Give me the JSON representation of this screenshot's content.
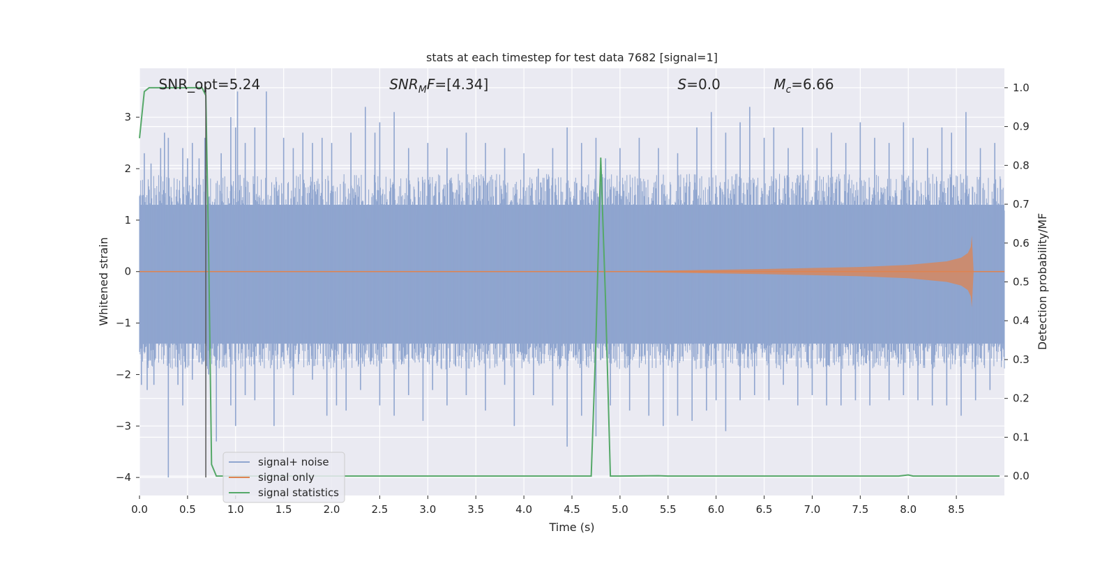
{
  "chart_data": {
    "type": "line",
    "title": "stats at each timestep for test data 7682 [signal=1]",
    "xlabel": "Time (s)",
    "ylabel_left": "Whitened strain",
    "ylabel_right": "Detection probability/MF",
    "xlim": [
      0.0,
      9.0
    ],
    "ylim_left": [
      -4.35,
      3.95
    ],
    "ylim_right": [
      -0.05,
      1.05
    ],
    "xticks": [
      0.0,
      0.5,
      1.0,
      1.5,
      2.0,
      2.5,
      3.0,
      3.5,
      4.0,
      4.5,
      5.0,
      5.5,
      6.0,
      6.5,
      7.0,
      7.5,
      8.0,
      8.5
    ],
    "xtick_labels": [
      "0.0",
      "0.5",
      "1.0",
      "1.5",
      "2.0",
      "2.5",
      "3.0",
      "3.5",
      "4.0",
      "4.5",
      "5.0",
      "5.5",
      "6.0",
      "6.5",
      "7.0",
      "7.5",
      "8.0",
      "8.5"
    ],
    "yticks_left": [
      3,
      2,
      1,
      0,
      -1,
      -2,
      -3,
      -4
    ],
    "ytick_labels_left": [
      "3",
      "2",
      "1",
      "0",
      "−1",
      "−2",
      "−3",
      "−4"
    ],
    "yticks_right": [
      1.0,
      0.9,
      0.8,
      0.7,
      0.6,
      0.5,
      0.4,
      0.3,
      0.2,
      0.1,
      0.0
    ],
    "ytick_labels_right": [
      "1.0",
      "0.9",
      "0.8",
      "0.7",
      "0.6",
      "0.5",
      "0.4",
      "0.3",
      "0.2",
      "0.1",
      "0.0"
    ],
    "grid": true,
    "legend_position": "lower-left",
    "annotations": [
      {
        "label": "SNR_opt=5.24",
        "math": false,
        "x": 0.2,
        "y": 3.6
      },
      {
        "base": "SNR",
        "sub": "M",
        "rest": "F=[4.34]",
        "math": true,
        "x": 2.6,
        "y": 3.6
      },
      {
        "base": "S",
        "sub": "",
        "rest": "=0.0",
        "math": true,
        "x": 5.6,
        "y": 3.6
      },
      {
        "base": "M",
        "sub": "c",
        "rest": "=6.66",
        "math": true,
        "x": 6.6,
        "y": 3.6
      }
    ],
    "vline": {
      "x": 0.69,
      "ymin": -4.0,
      "ymax": 3.6,
      "color": "#555555"
    },
    "series": [
      {
        "name": "signal+ noise",
        "color": "#8fa5cf",
        "axis": "left",
        "description_values": {
          "typical_lower": -1.4,
          "typical_upper": 1.3
        },
        "spikes_up": [
          [
            0.05,
            2.3
          ],
          [
            0.12,
            2.1
          ],
          [
            0.22,
            2.4
          ],
          [
            0.26,
            2.7
          ],
          [
            0.3,
            2.6
          ],
          [
            0.45,
            2.4
          ],
          [
            0.5,
            2.2
          ],
          [
            0.55,
            2.5
          ],
          [
            0.62,
            2.2
          ],
          [
            0.68,
            2.6
          ],
          [
            0.85,
            2.3
          ],
          [
            0.95,
            3.0
          ],
          [
            1.0,
            2.8
          ],
          [
            1.02,
            3.5
          ],
          [
            1.1,
            2.5
          ],
          [
            1.2,
            2.8
          ],
          [
            1.32,
            3.5
          ],
          [
            1.5,
            2.6
          ],
          [
            1.6,
            2.4
          ],
          [
            1.7,
            2.7
          ],
          [
            1.8,
            2.5
          ],
          [
            1.9,
            2.6
          ],
          [
            2.0,
            2.5
          ],
          [
            2.2,
            2.7
          ],
          [
            2.35,
            3.2
          ],
          [
            2.45,
            2.7
          ],
          [
            2.5,
            2.9
          ],
          [
            2.65,
            3.1
          ],
          [
            2.8,
            2.4
          ],
          [
            3.0,
            2.5
          ],
          [
            3.2,
            2.4
          ],
          [
            3.4,
            2.7
          ],
          [
            3.6,
            2.5
          ],
          [
            3.8,
            2.4
          ],
          [
            4.0,
            2.3
          ],
          [
            4.15,
            2.0
          ],
          [
            4.3,
            2.4
          ],
          [
            4.45,
            2.8
          ],
          [
            4.6,
            2.5
          ],
          [
            4.75,
            2.6
          ],
          [
            4.85,
            2.2
          ],
          [
            5.0,
            2.4
          ],
          [
            5.2,
            2.6
          ],
          [
            5.4,
            2.4
          ],
          [
            5.6,
            2.3
          ],
          [
            5.8,
            2.8
          ],
          [
            5.95,
            3.1
          ],
          [
            6.1,
            2.7
          ],
          [
            6.25,
            2.9
          ],
          [
            6.35,
            3.2
          ],
          [
            6.5,
            2.6
          ],
          [
            6.6,
            2.8
          ],
          [
            6.75,
            2.4
          ],
          [
            6.9,
            2.8
          ],
          [
            7.05,
            2.4
          ],
          [
            7.2,
            2.7
          ],
          [
            7.35,
            2.5
          ],
          [
            7.5,
            2.9
          ],
          [
            7.65,
            2.6
          ],
          [
            7.8,
            2.5
          ],
          [
            7.95,
            2.9
          ],
          [
            8.05,
            2.6
          ],
          [
            8.2,
            2.4
          ],
          [
            8.35,
            2.8
          ],
          [
            8.45,
            2.7
          ],
          [
            8.6,
            3.1
          ],
          [
            8.75,
            2.4
          ],
          [
            8.9,
            2.5
          ]
        ],
        "spikes_down": [
          [
            0.02,
            -2.2
          ],
          [
            0.08,
            -2.3
          ],
          [
            0.15,
            -2.2
          ],
          [
            0.3,
            -4.0
          ],
          [
            0.4,
            -2.2
          ],
          [
            0.45,
            -2.6
          ],
          [
            0.55,
            -2.1
          ],
          [
            0.65,
            -1.8
          ],
          [
            0.72,
            -2.0
          ],
          [
            0.8,
            -3.3
          ],
          [
            0.95,
            -2.6
          ],
          [
            1.0,
            -3.0
          ],
          [
            1.1,
            -2.4
          ],
          [
            1.2,
            -2.5
          ],
          [
            1.4,
            -3.0
          ],
          [
            1.6,
            -2.4
          ],
          [
            1.8,
            -2.1
          ],
          [
            1.95,
            -2.8
          ],
          [
            2.05,
            -2.6
          ],
          [
            2.15,
            -2.7
          ],
          [
            2.3,
            -2.3
          ],
          [
            2.5,
            -2.6
          ],
          [
            2.65,
            -2.8
          ],
          [
            2.8,
            -2.4
          ],
          [
            2.95,
            -2.9
          ],
          [
            3.05,
            -2.3
          ],
          [
            3.2,
            -2.6
          ],
          [
            3.4,
            -2.4
          ],
          [
            3.6,
            -2.7
          ],
          [
            3.8,
            -2.2
          ],
          [
            3.9,
            -3.0
          ],
          [
            4.1,
            -2.4
          ],
          [
            4.3,
            -2.6
          ],
          [
            4.45,
            -3.4
          ],
          [
            4.6,
            -2.8
          ],
          [
            4.75,
            -3.2
          ],
          [
            4.9,
            -2.6
          ],
          [
            5.1,
            -2.7
          ],
          [
            5.3,
            -2.8
          ],
          [
            5.45,
            -3.0
          ],
          [
            5.6,
            -2.8
          ],
          [
            5.75,
            -2.9
          ],
          [
            5.9,
            -2.7
          ],
          [
            6.0,
            -2.5
          ],
          [
            6.1,
            -3.1
          ],
          [
            6.25,
            -2.5
          ],
          [
            6.4,
            -2.4
          ],
          [
            6.55,
            -2.5
          ],
          [
            6.7,
            -2.2
          ],
          [
            6.85,
            -2.6
          ],
          [
            7.0,
            -2.4
          ],
          [
            7.15,
            -2.6
          ],
          [
            7.3,
            -2.6
          ],
          [
            7.45,
            -2.5
          ],
          [
            7.6,
            -2.6
          ],
          [
            7.8,
            -2.5
          ],
          [
            7.95,
            -2.4
          ],
          [
            8.1,
            -2.5
          ],
          [
            8.25,
            -2.6
          ],
          [
            8.4,
            -2.6
          ],
          [
            8.55,
            -2.8
          ],
          [
            8.7,
            -2.5
          ],
          [
            8.85,
            -2.3
          ]
        ]
      },
      {
        "name": "signal only",
        "color": "#dd8452",
        "axis": "left",
        "x": [
          0.0,
          4.7,
          5.5,
          6.5,
          7.5,
          8.0,
          8.4,
          8.55,
          8.62,
          8.65,
          8.66,
          8.68,
          9.0
        ],
        "envelope": [
          0.0,
          0.0,
          0.02,
          0.05,
          0.09,
          0.13,
          0.2,
          0.27,
          0.36,
          0.48,
          0.7,
          0.0,
          0.0
        ]
      },
      {
        "name": "signal statistics",
        "color": "#55a868",
        "axis": "right",
        "x": [
          0.0,
          0.05,
          0.1,
          0.2,
          0.3,
          0.4,
          0.5,
          0.6,
          0.65,
          0.69,
          0.72,
          0.75,
          0.8,
          0.9,
          1.0,
          2.0,
          3.0,
          4.0,
          4.5,
          4.7,
          4.75,
          4.8,
          4.85,
          4.9,
          5.0,
          5.4,
          5.5,
          6.0,
          7.0,
          7.9,
          8.0,
          8.05,
          8.5,
          8.95
        ],
        "values": [
          0.87,
          0.99,
          1.0,
          1.0,
          1.0,
          1.0,
          1.0,
          1.0,
          1.0,
          0.98,
          0.57,
          0.03,
          0.0,
          0.0,
          0.0,
          0.0,
          0.0,
          0.0,
          0.0,
          0.0,
          0.35,
          0.82,
          0.45,
          0.0,
          0.0,
          0.001,
          0.0,
          0.0,
          0.0,
          0.0,
          0.003,
          0.0,
          0.0,
          0.0
        ]
      }
    ]
  }
}
